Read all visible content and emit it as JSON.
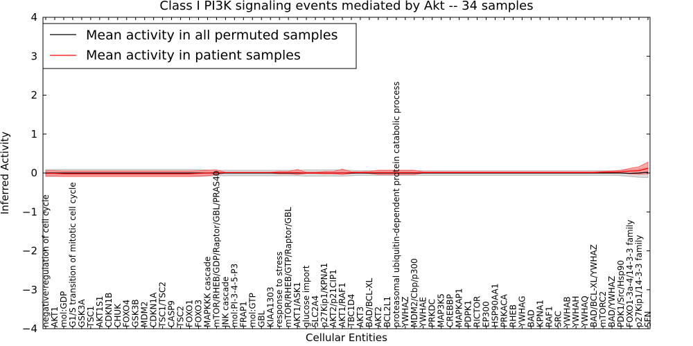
{
  "chart_data": {
    "type": "line",
    "title": "Class I PI3K signaling events mediated by Akt -- 34 samples",
    "xlabel": "Cellular Entities",
    "ylabel": "Inferred Activity",
    "ylim": [
      -4,
      4
    ],
    "yticks": [
      -4,
      -3,
      -2,
      -1,
      0,
      1,
      2,
      3,
      4
    ],
    "ytick_labels": [
      "−4",
      "−3",
      "−2",
      "−1",
      "0",
      "1",
      "2",
      "3",
      "4"
    ],
    "legend": {
      "position": "top-left",
      "entries": [
        {
          "label": "Mean activity in all permuted samples",
          "color": "#000000"
        },
        {
          "label": "Mean activity in patient samples",
          "color": "#ff0000"
        }
      ]
    },
    "categories": [
      "negative regulation of cell cycle",
      "AKT1",
      "mol:GDP",
      "G1/S transition of mitotic cell cycle",
      "GSK3A",
      "TSC1",
      "AKT1S1",
      "CDKN1B",
      "CHUK",
      "FOXO4",
      "GSK3B",
      "MDM2",
      "CDKN1A",
      "TSC1/TSC2",
      "CASP9",
      "TSC2",
      "FOXO1",
      "FOXO3",
      "MAPKKK cascade",
      "mTOR/RHEB/GDP/Raptor/GBL/PRAS40",
      "JNK cascade",
      "mol:PI-3-4-5-P3",
      "FRAP1",
      "mol:GTP",
      "GBL",
      "KIAA1303",
      "response to stress",
      "mTOR/RHEB/GTP/Raptor/GBL",
      "AKT1/ASK1",
      "glucose import",
      "SLC2A4",
      "p27Kip1/KPNA1",
      "AKT2/p21CIP1",
      "AKT1/RAF1",
      "TBC1D4",
      "AKT3",
      "BAD/BCL-XL",
      "AKT2",
      "BCL2L1",
      "proteasomal ubiquitin-dependent protein catabolic process",
      "YWHAZ",
      "MDM2/Cbp/p300",
      "YWHAE",
      "PRKDC",
      "MAP3K5",
      "CREBBP",
      "MAPKAP1",
      "PDPK1",
      "RICTOR",
      "EP300",
      "HSP90AA1",
      "PRKACA",
      "RHEB",
      "YWHAG",
      "BAD",
      "KPNA1",
      "RAF1",
      "SRC",
      "YWHAB",
      "YWHAH",
      "YWHAQ",
      "BAD/BCL-XL/YWHAZ",
      "mTORC2",
      "BAD/YWHAZ",
      "PDK1/Src/Hsp90",
      "FOXO1-3a-4/14-3-3 family",
      "p27Kip1/14-3-3 family",
      "SFN"
    ],
    "series": [
      {
        "name": "Mean activity in patient samples",
        "color": "#ff0000",
        "values": [
          -0.01,
          -0.01,
          -0.02,
          -0.02,
          -0.02,
          -0.02,
          -0.02,
          -0.02,
          -0.02,
          -0.02,
          -0.02,
          -0.02,
          -0.02,
          -0.02,
          -0.02,
          -0.02,
          -0.02,
          -0.01,
          0.0,
          0.01,
          0.01,
          0.01,
          0.01,
          0.01,
          0.01,
          0.01,
          0.01,
          0.01,
          0.01,
          0.0,
          0.0,
          0.0,
          0.0,
          0.0,
          0.01,
          0.01,
          0.01,
          0.01,
          0.01,
          0.01,
          0.01,
          0.01,
          0.01,
          0.01,
          0.01,
          0.01,
          0.01,
          0.01,
          0.01,
          0.01,
          0.01,
          0.01,
          0.01,
          0.01,
          0.01,
          0.01,
          0.01,
          0.01,
          0.01,
          0.01,
          0.01,
          0.01,
          0.02,
          0.02,
          0.03,
          0.05,
          0.06,
          0.12
        ],
        "lower": [
          -0.08,
          -0.08,
          -0.09,
          -0.09,
          -0.09,
          -0.09,
          -0.09,
          -0.09,
          -0.09,
          -0.09,
          -0.09,
          -0.09,
          -0.09,
          -0.09,
          -0.09,
          -0.09,
          -0.09,
          -0.08,
          -0.07,
          -0.04,
          0.0,
          0.0,
          0.0,
          0.0,
          0.0,
          0.0,
          -0.02,
          -0.02,
          -0.04,
          -0.01,
          -0.01,
          -0.02,
          -0.02,
          -0.04,
          -0.01,
          0.0,
          -0.01,
          -0.04,
          -0.04,
          -0.04,
          -0.04,
          -0.04,
          0.0,
          0.0,
          0.0,
          0.0,
          0.0,
          0.0,
          0.0,
          0.0,
          0.0,
          0.0,
          0.0,
          0.0,
          0.0,
          0.0,
          0.0,
          0.0,
          0.0,
          0.0,
          0.0,
          0.0,
          0.0,
          0.0,
          0.0,
          -0.02,
          -0.03,
          -0.02
        ],
        "upper": [
          0.06,
          0.06,
          0.05,
          0.05,
          0.05,
          0.05,
          0.05,
          0.05,
          0.05,
          0.05,
          0.05,
          0.05,
          0.05,
          0.05,
          0.05,
          0.05,
          0.05,
          0.06,
          0.07,
          0.08,
          0.02,
          0.02,
          0.02,
          0.02,
          0.02,
          0.02,
          0.04,
          0.04,
          0.09,
          0.02,
          0.02,
          0.04,
          0.04,
          0.1,
          0.03,
          0.03,
          0.04,
          0.07,
          0.07,
          0.07,
          0.07,
          0.07,
          0.03,
          0.03,
          0.03,
          0.03,
          0.03,
          0.03,
          0.03,
          0.03,
          0.03,
          0.03,
          0.03,
          0.03,
          0.03,
          0.03,
          0.03,
          0.03,
          0.03,
          0.03,
          0.03,
          0.03,
          0.04,
          0.05,
          0.07,
          0.12,
          0.16,
          0.28
        ]
      },
      {
        "name": "Mean activity in all permuted samples",
        "color": "#000000",
        "values": [
          0.0,
          0.0,
          0.0,
          0.0,
          0.0,
          0.0,
          0.0,
          0.0,
          0.0,
          0.0,
          0.0,
          0.0,
          0.0,
          0.0,
          0.0,
          0.0,
          0.0,
          0.0,
          0.0,
          0.0,
          0.0,
          0.0,
          0.0,
          0.0,
          0.0,
          0.0,
          0.0,
          0.0,
          0.0,
          0.0,
          0.0,
          0.0,
          0.0,
          0.0,
          0.0,
          0.0,
          0.0,
          0.0,
          0.0,
          0.0,
          0.0,
          0.0,
          0.0,
          0.0,
          0.0,
          0.0,
          0.0,
          0.0,
          0.0,
          0.0,
          0.0,
          0.0,
          0.0,
          0.0,
          0.0,
          0.0,
          0.0,
          0.0,
          0.0,
          0.0,
          0.0,
          0.0,
          0.0,
          0.0,
          0.0,
          -0.01,
          0.0,
          0.02
        ],
        "lower": [
          -0.09,
          -0.09,
          -0.09,
          -0.09,
          -0.09,
          -0.09,
          -0.09,
          -0.09,
          -0.09,
          -0.09,
          -0.09,
          -0.09,
          -0.09,
          -0.09,
          -0.09,
          -0.09,
          -0.09,
          -0.09,
          -0.08,
          -0.07,
          -0.07,
          -0.07,
          -0.07,
          -0.07,
          -0.07,
          -0.07,
          -0.07,
          -0.07,
          -0.07,
          -0.08,
          -0.08,
          -0.08,
          -0.08,
          -0.08,
          -0.07,
          -0.06,
          -0.06,
          -0.06,
          -0.06,
          -0.06,
          -0.06,
          -0.06,
          -0.06,
          -0.06,
          -0.06,
          -0.06,
          -0.06,
          -0.06,
          -0.06,
          -0.06,
          -0.06,
          -0.06,
          -0.06,
          -0.06,
          -0.06,
          -0.06,
          -0.06,
          -0.06,
          -0.06,
          -0.06,
          -0.06,
          -0.06,
          -0.06,
          -0.06,
          -0.07,
          -0.09,
          -0.11,
          -0.12
        ],
        "upper": [
          0.09,
          0.09,
          0.09,
          0.09,
          0.09,
          0.09,
          0.09,
          0.09,
          0.09,
          0.09,
          0.09,
          0.09,
          0.09,
          0.09,
          0.09,
          0.09,
          0.09,
          0.09,
          0.08,
          0.07,
          0.07,
          0.07,
          0.07,
          0.07,
          0.07,
          0.07,
          0.07,
          0.07,
          0.07,
          0.08,
          0.08,
          0.08,
          0.08,
          0.08,
          0.07,
          0.06,
          0.06,
          0.06,
          0.06,
          0.06,
          0.06,
          0.06,
          0.06,
          0.06,
          0.06,
          0.06,
          0.06,
          0.06,
          0.06,
          0.06,
          0.06,
          0.06,
          0.06,
          0.06,
          0.06,
          0.06,
          0.06,
          0.06,
          0.06,
          0.06,
          0.06,
          0.06,
          0.06,
          0.06,
          0.07,
          0.08,
          0.1,
          0.14
        ]
      }
    ]
  }
}
